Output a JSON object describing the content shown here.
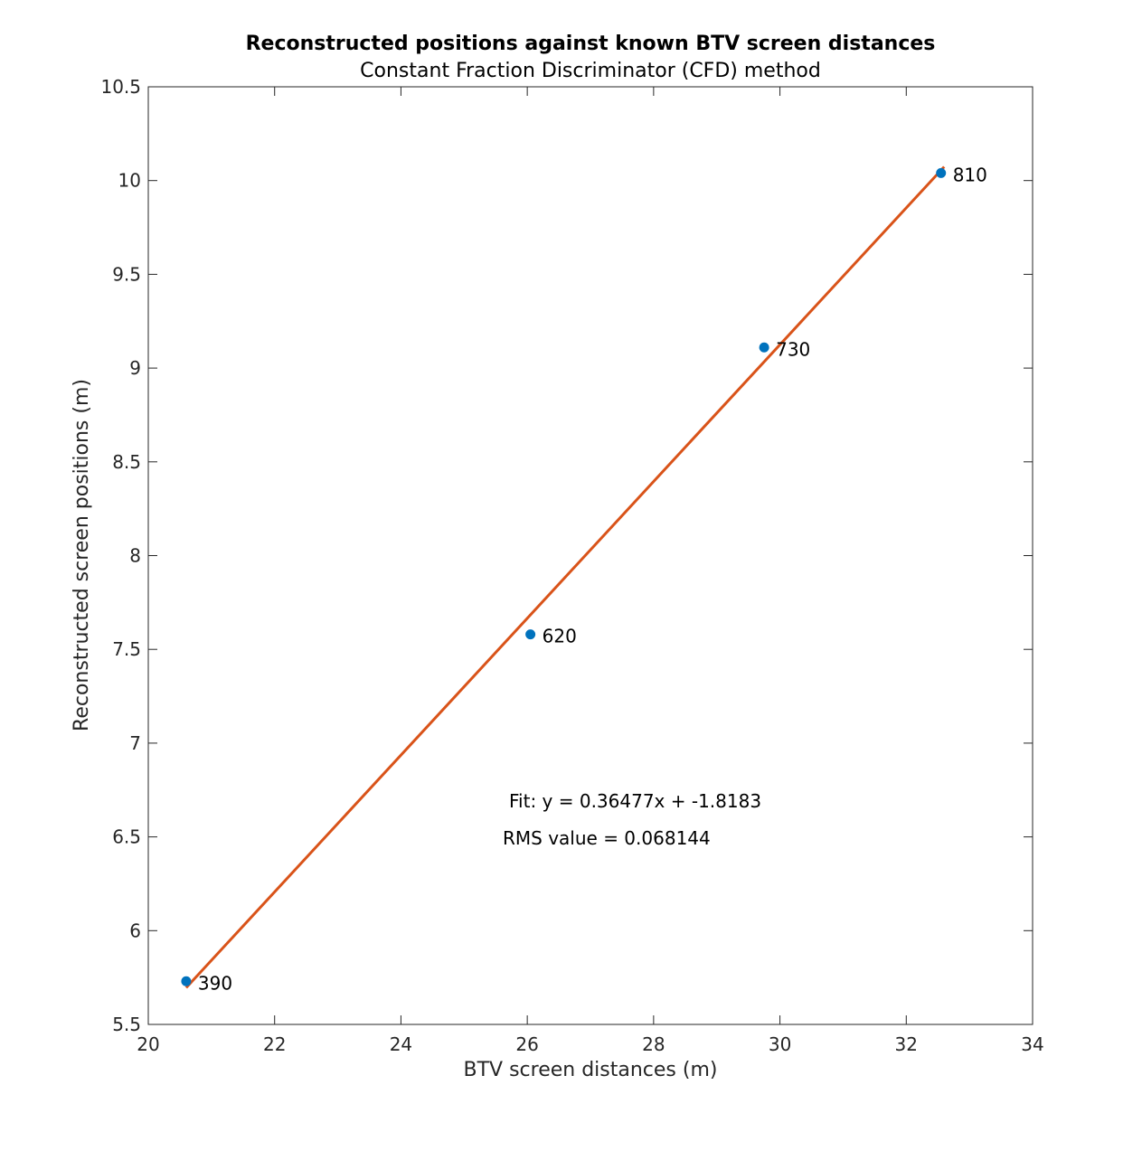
{
  "chart_data": {
    "type": "scatter",
    "title": "Reconstructed positions against known BTV screen distances",
    "subtitle": "Constant Fraction Discriminator (CFD) method",
    "xlabel": "BTV screen distances (m)",
    "ylabel": "Reconstructed screen positions (m)",
    "xlim": [
      20,
      34
    ],
    "ylim": [
      5.5,
      10.5
    ],
    "xticks": [
      "20",
      "22",
      "24",
      "26",
      "28",
      "30",
      "32",
      "34"
    ],
    "yticks": [
      "5.5",
      "6",
      "6.5",
      "7",
      "7.5",
      "8",
      "8.5",
      "9",
      "9.5",
      "10",
      "10.5"
    ],
    "grid": false,
    "points": [
      {
        "x": 20.6,
        "y": 5.73,
        "label": "390"
      },
      {
        "x": 26.05,
        "y": 7.58,
        "label": "620"
      },
      {
        "x": 29.75,
        "y": 9.11,
        "label": "730"
      },
      {
        "x": 32.55,
        "y": 10.04,
        "label": "810"
      }
    ],
    "fit": {
      "slope": 0.36477,
      "intercept": -1.8183,
      "x_range": [
        20.6,
        32.6
      ]
    },
    "annotations": {
      "fit_text": "Fit: y = 0.36477x + -1.8183",
      "rms_text": "RMS value = 0.068144"
    },
    "colors": {
      "points": "#0072BD",
      "fit_line": "#D95319",
      "axes": "#262626"
    }
  }
}
